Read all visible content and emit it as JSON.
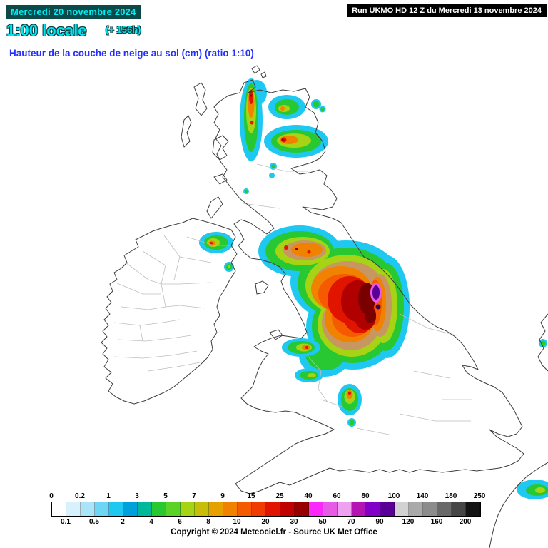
{
  "header": {
    "date": "Mercredi 20 novembre 2024",
    "time": "1:00 locale",
    "offset": "(+ 156h)",
    "run": "Run UKMO HD 12 Z du Mercredi 13 novembre 2024"
  },
  "title": "Hauteur de la couche de neige au sol (cm) (ratio 1:10)",
  "legend": {
    "unit": "cm",
    "boundaries": [
      0,
      0.1,
      0.2,
      0.5,
      1,
      2,
      3,
      4,
      5,
      6,
      7,
      8,
      9,
      10,
      15,
      20,
      25,
      30,
      40,
      50,
      60,
      70,
      80,
      90,
      100,
      120,
      140,
      160,
      180,
      200,
      250
    ],
    "top_labels": [
      "0",
      "0.2",
      "1",
      "3",
      "5",
      "7",
      "9",
      "15",
      "25",
      "40",
      "60",
      "80",
      "100",
      "140",
      "180",
      "250"
    ],
    "bottom_labels": [
      "0.1",
      "0.5",
      "2",
      "4",
      "6",
      "8",
      "10",
      "20",
      "30",
      "50",
      "70",
      "90",
      "120",
      "160",
      "200"
    ],
    "colors": [
      "#ffffff",
      "#d7f2fc",
      "#aae4f8",
      "#6cd6f4",
      "#1ec8f0",
      "#00a0dc",
      "#00b99b",
      "#28c832",
      "#5ad228",
      "#a6d414",
      "#c8be0a",
      "#e6a000",
      "#f08200",
      "#f55a00",
      "#f03c00",
      "#e11400",
      "#c00000",
      "#960000",
      "#fa28fa",
      "#e65ae6",
      "#f0a0f0",
      "#b414b4",
      "#8200c8",
      "#5a0096",
      "#d2d2d2",
      "#aaaaaa",
      "#8c8c8c",
      "#696969",
      "#464646",
      "#141414"
    ]
  },
  "map": {
    "region": "United Kingdom and Ireland",
    "snow_areas": [
      {
        "region": "northwest-scotland",
        "depicted_level": "red core, approx 10-20 cm"
      },
      {
        "region": "north-scotland",
        "depicted_level": "orange-red core, approx 8-15 cm"
      },
      {
        "region": "northern-ireland",
        "depicted_level": "red speck, approx 10-15 cm"
      },
      {
        "region": "northern-england-pennines",
        "depicted_level": "dark red / violet core, approx 60-90 cm"
      },
      {
        "region": "north-wales-snowdonia",
        "depicted_level": "red speck, approx 10-15 cm"
      },
      {
        "region": "peak-district-midlands",
        "depicted_level": "red speck, approx 10-20 cm"
      },
      {
        "region": "southeast-continent-corner",
        "depicted_level": "yellow-green, approx 3-5 cm"
      }
    ]
  },
  "colors": {
    "header_cyan": "#00e4f4",
    "header_box": "#0c4a4a",
    "title_blue": "#2330ff",
    "run_box_bg": "#000000",
    "run_box_text": "#ffffff",
    "coastline": "#3c3c3c"
  },
  "footer": {
    "copyright": "Copyright © 2024 Meteociel.fr - Source UK Met Office"
  }
}
